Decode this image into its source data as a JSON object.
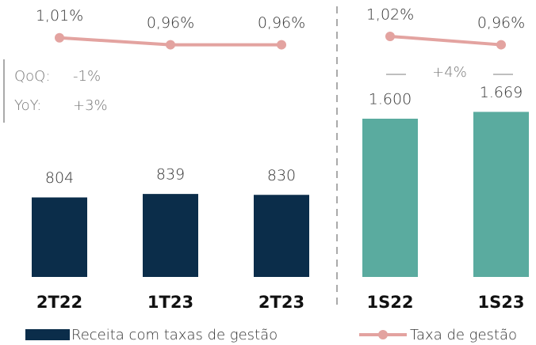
{
  "chart_data": [
    {
      "type": "bar",
      "categories": [
        "2T22",
        "1T23",
        "2T23"
      ],
      "series": [
        {
          "name": "Receita com taxas de gestão",
          "color": "#0b2d4a",
          "values": [
            804,
            839,
            830
          ]
        },
        {
          "name": "Taxa de gestão",
          "color": "#e3a3a0",
          "type": "line",
          "axis": "y2",
          "values": [
            1.01,
            0.96,
            0.96
          ],
          "value_labels": [
            "1,01%",
            "0,96%",
            "0,96%"
          ]
        }
      ],
      "ylim": [
        0,
        2800
      ],
      "y2lim": [
        -0.7,
        1.28
      ],
      "annotations": [
        "QoQ:",
        "-1%",
        "YoY:",
        "+3%"
      ]
    },
    {
      "type": "bar",
      "categories": [
        "1S22",
        "1S23"
      ],
      "series": [
        {
          "color": "#5aab9f",
          "values": [
            1600,
            1669
          ],
          "value_labels": [
            "1.600",
            "1.669"
          ]
        },
        {
          "color": "#e3a3a0",
          "type": "line",
          "axis": "y2",
          "values": [
            1.02,
            0.96
          ],
          "value_labels": [
            "1,02%",
            "0,96%"
          ]
        }
      ],
      "ylim": [
        0,
        2800
      ],
      "y2lim": [
        -0.7,
        1.28
      ],
      "annotations": [
        "+4%"
      ]
    }
  ]
}
